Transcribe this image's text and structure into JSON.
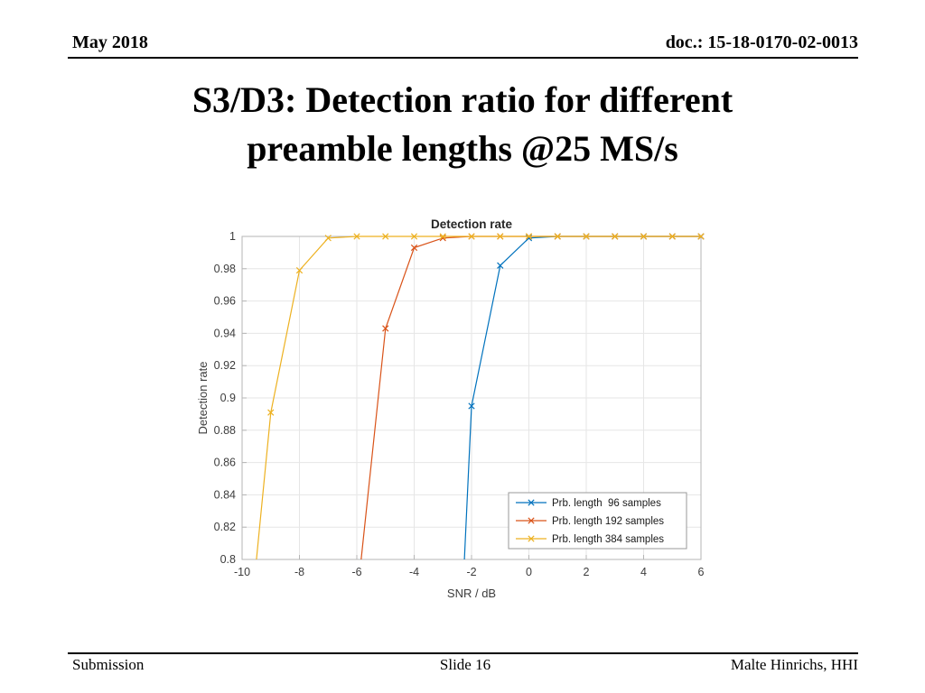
{
  "header": {
    "date": "May 2018",
    "doc": "doc.: 15-18-0170-02-0013"
  },
  "title": "S3/D3: Detection ratio for different preamble lengths @25 MS/s",
  "footer": {
    "left": "Submission",
    "center": "Slide 16",
    "right": "Malte Hinrichs, HHI"
  },
  "chart_data": {
    "type": "line",
    "title": "Detection rate",
    "xlabel": "SNR / dB",
    "ylabel": "Detection rate",
    "xlim": [
      -10,
      6
    ],
    "ylim": [
      0.8,
      1
    ],
    "xticks": [
      "-10",
      "-8",
      "-6",
      "-4",
      "-2",
      "0",
      "2",
      "4",
      "6"
    ],
    "yticks": [
      "0.8",
      "0.82",
      "0.84",
      "0.86",
      "0.88",
      "0.9",
      "0.92",
      "0.94",
      "0.96",
      "0.98",
      "1"
    ],
    "grid": true,
    "marker": "x",
    "legend_position": "inside-bottom-right",
    "colors": {
      "grid": "#e6e6e6",
      "axis_box": "#b5b5b5",
      "tick_label": "#3c3c3c",
      "title": "#262626"
    },
    "series": [
      {
        "name": "Prb. length  96 samples",
        "color": "#0072BD",
        "baseline_entry_x": -2.25,
        "x": [
          -2,
          -1,
          0,
          1,
          2,
          3,
          4,
          5,
          6
        ],
        "y": [
          0.895,
          0.982,
          0.999,
          1,
          1,
          1,
          1,
          1,
          1
        ]
      },
      {
        "name": "Prb. length 192 samples",
        "color": "#D95319",
        "baseline_entry_x": -5.85,
        "x": [
          -5,
          -4,
          -3,
          -2,
          -1,
          0,
          1,
          2,
          3,
          4,
          5,
          6
        ],
        "y": [
          0.943,
          0.993,
          0.999,
          1,
          1,
          1,
          1,
          1,
          1,
          1,
          1,
          1
        ]
      },
      {
        "name": "Prb. length 384 samples",
        "color": "#EDB120",
        "baseline_entry_x": -9.5,
        "x": [
          -9,
          -8,
          -7,
          -6,
          -5,
          -4,
          -3,
          -2,
          -1,
          0,
          1,
          2,
          3,
          4,
          5,
          6
        ],
        "y": [
          0.891,
          0.979,
          0.999,
          1,
          1,
          1,
          1,
          1,
          1,
          1,
          1,
          1,
          1,
          1,
          1,
          1
        ]
      }
    ]
  }
}
